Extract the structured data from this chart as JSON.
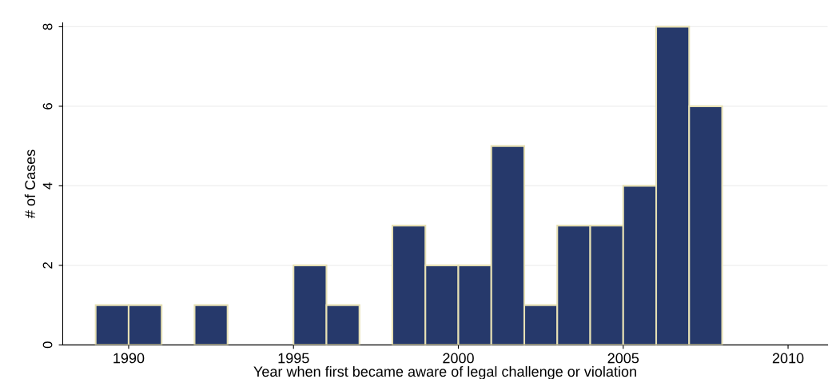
{
  "chart_data": {
    "type": "histogram",
    "xlabel": "Year when first became aware of legal challenge or violation",
    "ylabel": "# of Cases",
    "bins": [
      1989,
      1990,
      1991,
      1992,
      1993,
      1994,
      1995,
      1996,
      1997,
      1998,
      1999,
      2000,
      2001,
      2002,
      2003,
      2004,
      2005,
      2006,
      2007,
      2008
    ],
    "values": [
      1,
      1,
      0,
      1,
      0,
      0,
      2,
      1,
      0,
      3,
      2,
      2,
      5,
      1,
      3,
      3,
      4,
      8,
      6
    ],
    "color": "#26396b",
    "xlim": [
      1988,
      2011.2
    ],
    "xticks": [
      1990,
      1995,
      2000,
      2005,
      2010
    ],
    "ylim": [
      0,
      8.1
    ],
    "yticks": [
      0,
      2,
      4,
      6,
      8
    ],
    "grid": "y",
    "legend": false
  }
}
